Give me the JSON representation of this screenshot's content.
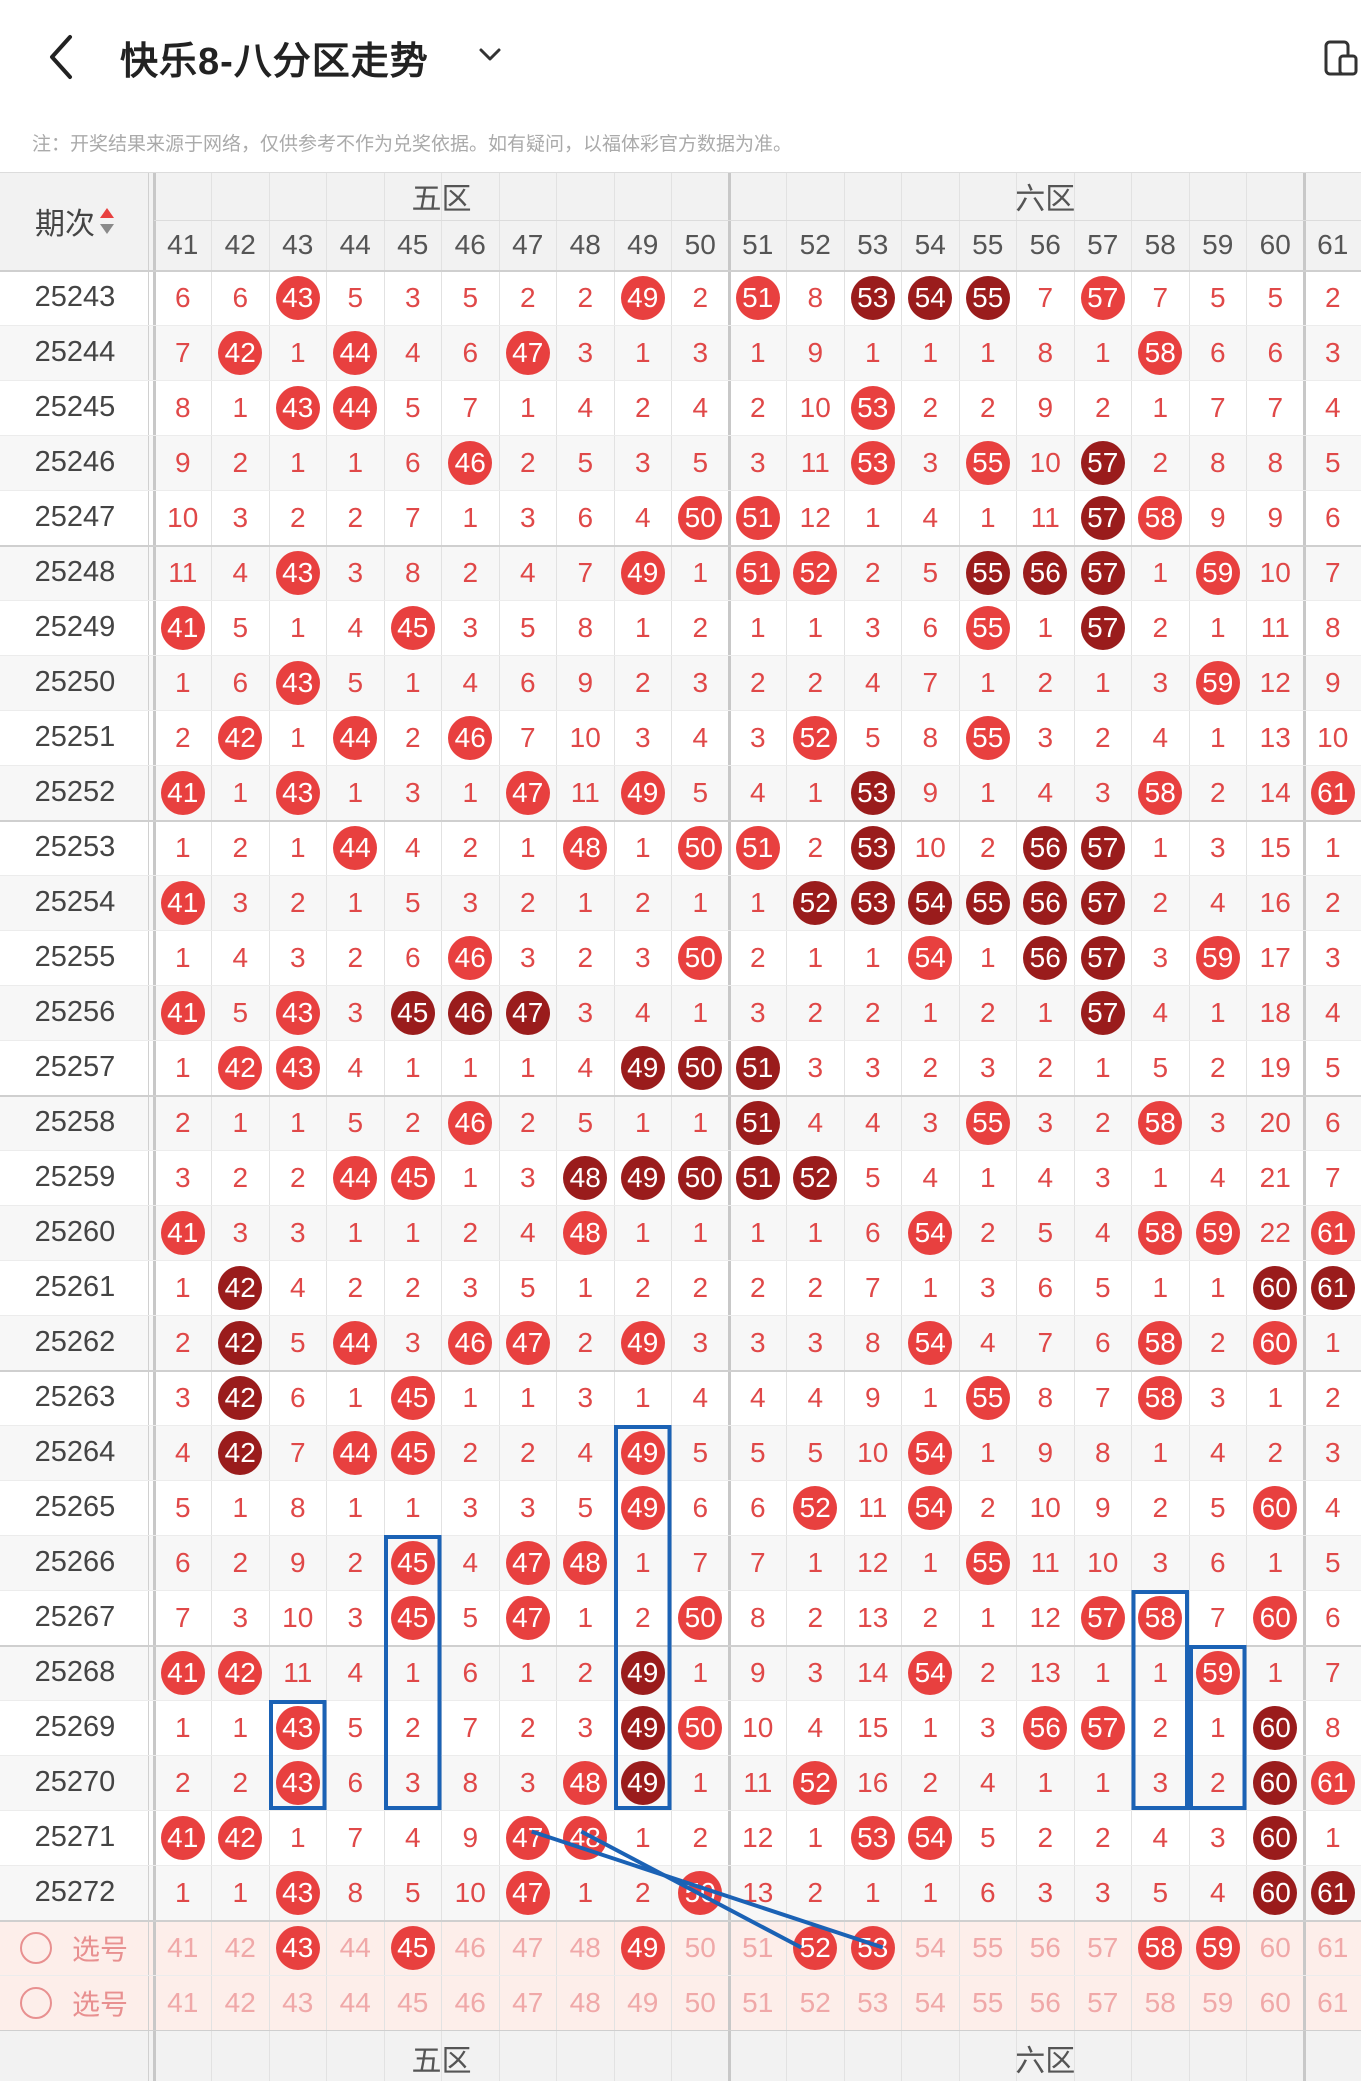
{
  "header": {
    "title": "快乐8-八分区走势",
    "back_icon": "chevron-left-icon",
    "dropdown_icon": "chevron-down-icon",
    "device_icon": "device-switch-icon"
  },
  "note": "注：开奖结果来源于网络，仅供参考不作为兑奖依据。如有疑问，以福体彩官方数据为准。",
  "table": {
    "period_header": "期次",
    "sort_icon": "sort-updown-icon",
    "zones": [
      {
        "label": "五区",
        "start": 41,
        "end": 50
      },
      {
        "label": "六区",
        "start": 51,
        "end": 61
      }
    ],
    "columns": [
      41,
      42,
      43,
      44,
      45,
      46,
      47,
      48,
      49,
      50,
      51,
      52,
      53,
      54,
      55,
      56,
      57,
      58,
      59,
      60,
      61
    ],
    "rows": [
      {
        "p": "25243",
        "v": [
          6,
          6,
          "43",
          5,
          3,
          5,
          2,
          2,
          "49",
          2,
          "51",
          8,
          "53d",
          "54d",
          "55d",
          7,
          "57",
          7,
          5,
          5,
          2
        ]
      },
      {
        "p": "25244",
        "v": [
          7,
          "42",
          1,
          "44",
          4,
          6,
          "47",
          3,
          1,
          3,
          1,
          9,
          1,
          1,
          1,
          8,
          1,
          "58",
          6,
          6,
          3
        ]
      },
      {
        "p": "25245",
        "v": [
          8,
          1,
          "43",
          "44",
          5,
          7,
          1,
          4,
          2,
          4,
          2,
          10,
          "53",
          2,
          2,
          9,
          2,
          1,
          7,
          7,
          4
        ]
      },
      {
        "p": "25246",
        "v": [
          9,
          2,
          1,
          1,
          6,
          "46",
          2,
          5,
          3,
          5,
          3,
          11,
          "53",
          3,
          "55",
          10,
          "57d",
          2,
          8,
          8,
          5
        ]
      },
      {
        "p": "25247",
        "v": [
          10,
          3,
          2,
          2,
          7,
          1,
          3,
          6,
          4,
          "50",
          "51",
          12,
          1,
          4,
          1,
          11,
          "57d",
          "58",
          9,
          9,
          6
        ]
      },
      {
        "p": "25248",
        "v": [
          11,
          4,
          "43",
          3,
          8,
          2,
          4,
          7,
          "49",
          1,
          "51",
          "52",
          2,
          5,
          "55d",
          "56d",
          "57d",
          1,
          "59",
          10,
          7
        ]
      },
      {
        "p": "25249",
        "v": [
          "41",
          5,
          1,
          4,
          "45",
          3,
          5,
          8,
          1,
          2,
          1,
          1,
          3,
          6,
          "55",
          1,
          "57d",
          2,
          1,
          11,
          8
        ]
      },
      {
        "p": "25250",
        "v": [
          1,
          6,
          "43",
          5,
          1,
          4,
          6,
          9,
          2,
          3,
          2,
          2,
          4,
          7,
          1,
          2,
          1,
          3,
          "59",
          12,
          9
        ]
      },
      {
        "p": "25251",
        "v": [
          2,
          "42",
          1,
          "44",
          2,
          "46",
          7,
          10,
          3,
          4,
          3,
          "52",
          5,
          8,
          "55",
          3,
          2,
          4,
          1,
          13,
          10
        ]
      },
      {
        "p": "25252",
        "v": [
          "41",
          1,
          "43",
          1,
          3,
          1,
          "47",
          11,
          "49",
          5,
          4,
          1,
          "53d",
          9,
          1,
          4,
          3,
          "58",
          2,
          14,
          "61"
        ]
      },
      {
        "p": "25253",
        "v": [
          1,
          2,
          1,
          "44",
          4,
          2,
          1,
          "48",
          1,
          "50",
          "51",
          2,
          "53d",
          10,
          2,
          "56d",
          "57d",
          1,
          3,
          15,
          1
        ]
      },
      {
        "p": "25254",
        "v": [
          "41",
          3,
          2,
          1,
          5,
          3,
          2,
          1,
          2,
          1,
          1,
          "52d",
          "53d",
          "54d",
          "55d",
          "56d",
          "57d",
          2,
          4,
          16,
          2
        ]
      },
      {
        "p": "25255",
        "v": [
          1,
          4,
          3,
          2,
          6,
          "46",
          3,
          2,
          3,
          "50",
          2,
          1,
          1,
          "54",
          1,
          "56d",
          "57d",
          3,
          "59",
          17,
          3
        ]
      },
      {
        "p": "25256",
        "v": [
          "41",
          5,
          "43",
          3,
          "45d",
          "46d",
          "47d",
          3,
          4,
          1,
          3,
          2,
          2,
          1,
          2,
          1,
          "57d",
          4,
          1,
          18,
          4
        ]
      },
      {
        "p": "25257",
        "v": [
          1,
          "42",
          "43",
          4,
          1,
          1,
          1,
          4,
          "49d",
          "50d",
          "51d",
          3,
          3,
          2,
          3,
          2,
          1,
          5,
          2,
          19,
          5
        ]
      },
      {
        "p": "25258",
        "v": [
          2,
          1,
          1,
          5,
          2,
          "46",
          2,
          5,
          1,
          1,
          "51d",
          4,
          4,
          3,
          "55",
          3,
          2,
          "58",
          3,
          20,
          6
        ]
      },
      {
        "p": "25259",
        "v": [
          3,
          2,
          2,
          "44",
          "45",
          1,
          3,
          "48d",
          "49d",
          "50d",
          "51d",
          "52d",
          5,
          4,
          1,
          4,
          3,
          1,
          4,
          21,
          7
        ]
      },
      {
        "p": "25260",
        "v": [
          "41",
          3,
          3,
          1,
          1,
          2,
          4,
          "48",
          1,
          1,
          1,
          1,
          6,
          "54",
          2,
          5,
          4,
          "58",
          "59",
          22,
          "61"
        ]
      },
      {
        "p": "25261",
        "v": [
          1,
          "42d",
          4,
          2,
          2,
          3,
          5,
          1,
          2,
          2,
          2,
          2,
          7,
          1,
          3,
          6,
          5,
          1,
          1,
          "60d",
          "61d"
        ]
      },
      {
        "p": "25262",
        "v": [
          2,
          "42d",
          5,
          "44",
          3,
          "46",
          "47",
          2,
          "49",
          3,
          3,
          3,
          8,
          "54",
          4,
          7,
          6,
          "58",
          2,
          "60",
          1
        ]
      },
      {
        "p": "25263",
        "v": [
          3,
          "42d",
          6,
          1,
          "45",
          1,
          1,
          3,
          1,
          4,
          4,
          4,
          9,
          1,
          "55",
          8,
          7,
          "58",
          3,
          1,
          2
        ]
      },
      {
        "p": "25264",
        "v": [
          4,
          "42d",
          7,
          "44",
          "45",
          2,
          2,
          4,
          "49",
          5,
          5,
          5,
          10,
          "54",
          1,
          9,
          8,
          1,
          4,
          2,
          3
        ]
      },
      {
        "p": "25265",
        "v": [
          5,
          1,
          8,
          1,
          1,
          3,
          3,
          5,
          "49",
          6,
          6,
          "52",
          11,
          "54",
          2,
          10,
          9,
          2,
          5,
          "60",
          4
        ]
      },
      {
        "p": "25266",
        "v": [
          6,
          2,
          9,
          2,
          "45",
          4,
          "47",
          "48",
          1,
          7,
          7,
          1,
          12,
          1,
          "55",
          11,
          10,
          3,
          6,
          1,
          5
        ]
      },
      {
        "p": "25267",
        "v": [
          7,
          3,
          10,
          3,
          "45",
          5,
          "47",
          1,
          2,
          "50",
          8,
          2,
          13,
          2,
          1,
          12,
          "57",
          "58",
          7,
          "60",
          6
        ]
      },
      {
        "p": "25268",
        "v": [
          "41",
          "42",
          11,
          4,
          1,
          6,
          1,
          2,
          "49d",
          1,
          9,
          3,
          14,
          "54",
          2,
          13,
          1,
          1,
          "59",
          1,
          7
        ]
      },
      {
        "p": "25269",
        "v": [
          1,
          1,
          "43",
          5,
          2,
          7,
          2,
          3,
          "49d",
          "50",
          10,
          4,
          15,
          1,
          3,
          "56",
          "57",
          2,
          1,
          "60d",
          8
        ]
      },
      {
        "p": "25270",
        "v": [
          2,
          2,
          "43",
          6,
          3,
          8,
          3,
          "48",
          "49d",
          1,
          11,
          "52",
          16,
          2,
          4,
          1,
          1,
          3,
          2,
          "60d",
          "61"
        ]
      },
      {
        "p": "25271",
        "v": [
          "41",
          "42",
          1,
          7,
          4,
          9,
          "47",
          "48",
          1,
          2,
          12,
          1,
          "53",
          "54",
          5,
          2,
          2,
          4,
          3,
          "60d",
          1
        ]
      },
      {
        "p": "25272",
        "v": [
          1,
          1,
          "43",
          8,
          5,
          10,
          "47",
          1,
          2,
          "50",
          13,
          2,
          1,
          1,
          6,
          3,
          3,
          5,
          4,
          "60d",
          "61d"
        ]
      }
    ],
    "select_rows": [
      {
        "label": "选号",
        "selected": [
          43,
          45,
          49,
          52,
          53,
          58,
          59
        ]
      },
      {
        "label": "选号",
        "selected": []
      }
    ],
    "colors": {
      "red_ball": "#e8403f",
      "dark_ball": "#9a1c1c",
      "miss_text": "#e04848",
      "select_row_bg": "#fdeeea",
      "annotation_blue": "#1b62b5"
    }
  }
}
